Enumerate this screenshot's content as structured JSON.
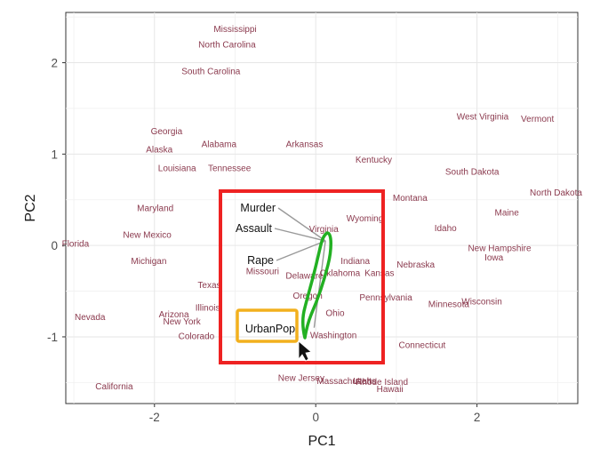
{
  "chart_data": {
    "type": "scatter",
    "title": "",
    "xlabel": "PC1",
    "ylabel": "PC2",
    "xlim": [
      -3.1,
      3.25
    ],
    "ylim": [
      -1.73,
      2.55
    ],
    "xticks": [
      -2,
      0,
      2
    ],
    "yticks": [
      -1,
      0,
      1,
      2
    ],
    "grid": true,
    "colors": {
      "points": "#8b3a4e",
      "loadings": "#999999",
      "highlight_box": "#ee2222",
      "highlight_label_box": "#f2b01e",
      "annotation_stroke": "#22b022"
    },
    "points": [
      {
        "label": "Mississippi",
        "x": -1.0,
        "y": 2.37
      },
      {
        "label": "North Carolina",
        "x": -1.1,
        "y": 2.2
      },
      {
        "label": "South Carolina",
        "x": -1.3,
        "y": 1.91
      },
      {
        "label": "Georgia",
        "x": -1.85,
        "y": 1.25
      },
      {
        "label": "Alabama",
        "x": -1.2,
        "y": 1.11
      },
      {
        "label": "Alaska",
        "x": -1.94,
        "y": 1.05
      },
      {
        "label": "Arkansas",
        "x": -0.14,
        "y": 1.11
      },
      {
        "label": "Kentucky",
        "x": 0.72,
        "y": 0.94
      },
      {
        "label": "West Virginia",
        "x": 2.07,
        "y": 1.41
      },
      {
        "label": "Vermont",
        "x": 2.75,
        "y": 1.39
      },
      {
        "label": "Louisiana",
        "x": -1.72,
        "y": 0.85
      },
      {
        "label": "Tennessee",
        "x": -1.07,
        "y": 0.85
      },
      {
        "label": "South Dakota",
        "x": 1.94,
        "y": 0.81
      },
      {
        "label": "North Dakota",
        "x": 2.98,
        "y": 0.58
      },
      {
        "label": "Montana",
        "x": 1.17,
        "y": 0.52
      },
      {
        "label": "Maryland",
        "x": -1.99,
        "y": 0.41
      },
      {
        "label": "Maine",
        "x": 2.37,
        "y": 0.36
      },
      {
        "label": "Wyoming",
        "x": 0.61,
        "y": 0.3
      },
      {
        "label": "Virginia",
        "x": 0.1,
        "y": 0.18
      },
      {
        "label": "Idaho",
        "x": 1.61,
        "y": 0.19
      },
      {
        "label": "New Mexico",
        "x": -2.09,
        "y": 0.12
      },
      {
        "label": "Florida",
        "x": -2.98,
        "y": 0.02
      },
      {
        "label": "New Hampshire",
        "x": 2.28,
        "y": -0.03
      },
      {
        "label": "Iowa",
        "x": 2.21,
        "y": -0.13
      },
      {
        "label": "Michigan",
        "x": -2.07,
        "y": -0.17
      },
      {
        "label": "Indiana",
        "x": 0.49,
        "y": -0.17
      },
      {
        "label": "Nebraska",
        "x": 1.24,
        "y": -0.21
      },
      {
        "label": "Missouri",
        "x": -0.66,
        "y": -0.28
      },
      {
        "label": "Kansas",
        "x": 0.79,
        "y": -0.3
      },
      {
        "label": "Oklahoma",
        "x": 0.3,
        "y": -0.3
      },
      {
        "label": "Delaware",
        "x": -0.14,
        "y": -0.33
      },
      {
        "label": "Texas",
        "x": -1.32,
        "y": -0.43
      },
      {
        "label": "Oregon",
        "x": -0.1,
        "y": -0.55
      },
      {
        "label": "Pennsylvania",
        "x": 0.87,
        "y": -0.57
      },
      {
        "label": "Minnesota",
        "x": 1.65,
        "y": -0.64
      },
      {
        "label": "Wisconsin",
        "x": 2.06,
        "y": -0.61
      },
      {
        "label": "Illinois",
        "x": -1.34,
        "y": -0.68
      },
      {
        "label": "Ohio",
        "x": 0.24,
        "y": -0.74
      },
      {
        "label": "Arizona",
        "x": -1.76,
        "y": -0.75
      },
      {
        "label": "New York",
        "x": -1.66,
        "y": -0.83
      },
      {
        "label": "Nevada",
        "x": -2.8,
        "y": -0.78
      },
      {
        "label": "Colorado",
        "x": -1.48,
        "y": -0.99
      },
      {
        "label": "Washington",
        "x": 0.22,
        "y": -0.98
      },
      {
        "label": "Connecticut",
        "x": 1.32,
        "y": -1.09
      },
      {
        "label": "New Jersey",
        "x": -0.18,
        "y": -1.45
      },
      {
        "label": "Massachusetts",
        "x": 0.38,
        "y": -1.48
      },
      {
        "label": "Rhode Island",
        "x": 0.82,
        "y": -1.49
      },
      {
        "label": "Utah",
        "x": 0.58,
        "y": -1.48
      },
      {
        "label": "Hawaii",
        "x": 0.92,
        "y": -1.57
      },
      {
        "label": "California",
        "x": -2.5,
        "y": -1.54
      }
    ],
    "loadings": [
      {
        "label": "Murder",
        "x": -0.1,
        "y": 0.2
      },
      {
        "label": "Assault",
        "x": -0.08,
        "y": 0.11
      },
      {
        "label": "Rape",
        "x": -0.06,
        "y": 0.05
      },
      {
        "label": "UrbanPop",
        "x": -0.25,
        "y": -1.05
      }
    ]
  }
}
